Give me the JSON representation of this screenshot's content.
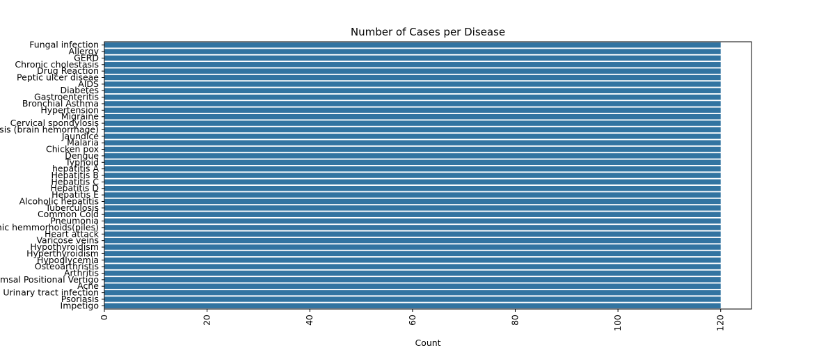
{
  "chart_data": {
    "type": "bar",
    "orientation": "horizontal",
    "title": "Number of Cases per Disease",
    "xlabel": "Count",
    "ylabel": "",
    "xlim": [
      0,
      126
    ],
    "xticks": [
      0,
      20,
      40,
      60,
      80,
      100,
      120
    ],
    "grid": false,
    "legend": "none",
    "bar_color": "#3274a1",
    "categories": [
      "Fungal infection",
      "Allergy",
      "GERD",
      "Chronic cholestasis",
      "Drug Reaction",
      "Peptic ulcer diseae",
      "AIDS",
      "Diabetes ",
      "Gastroenteritis",
      "Bronchial Asthma",
      "Hypertension ",
      "Migraine",
      "Cervical spondylosis",
      "Paralysis (brain hemorrhage)",
      "Jaundice",
      "Malaria",
      "Chicken pox",
      "Dengue",
      "Typhoid",
      "hepatitis A",
      "Hepatitis B",
      "Hepatitis C",
      "Hepatitis D",
      "Hepatitis E",
      "Alcoholic hepatitis",
      "Tuberculosis",
      "Common Cold",
      "Pneumonia",
      "Dimorphic hemmorhoids(piles)",
      "Heart attack",
      "Varicose veins",
      "Hypothyroidism",
      "Hyperthyroidism",
      "Hypoglycemia",
      "Osteoarthristis",
      "Arthritis",
      "(vertigo) Paroymsal  Positional Vertigo",
      "Acne",
      "Urinary tract infection",
      "Psoriasis",
      "Impetigo"
    ],
    "values": [
      120,
      120,
      120,
      120,
      120,
      120,
      120,
      120,
      120,
      120,
      120,
      120,
      120,
      120,
      120,
      120,
      120,
      120,
      120,
      120,
      120,
      120,
      120,
      120,
      120,
      120,
      120,
      120,
      120,
      120,
      120,
      120,
      120,
      120,
      120,
      120,
      120,
      120,
      120,
      120,
      120
    ]
  }
}
